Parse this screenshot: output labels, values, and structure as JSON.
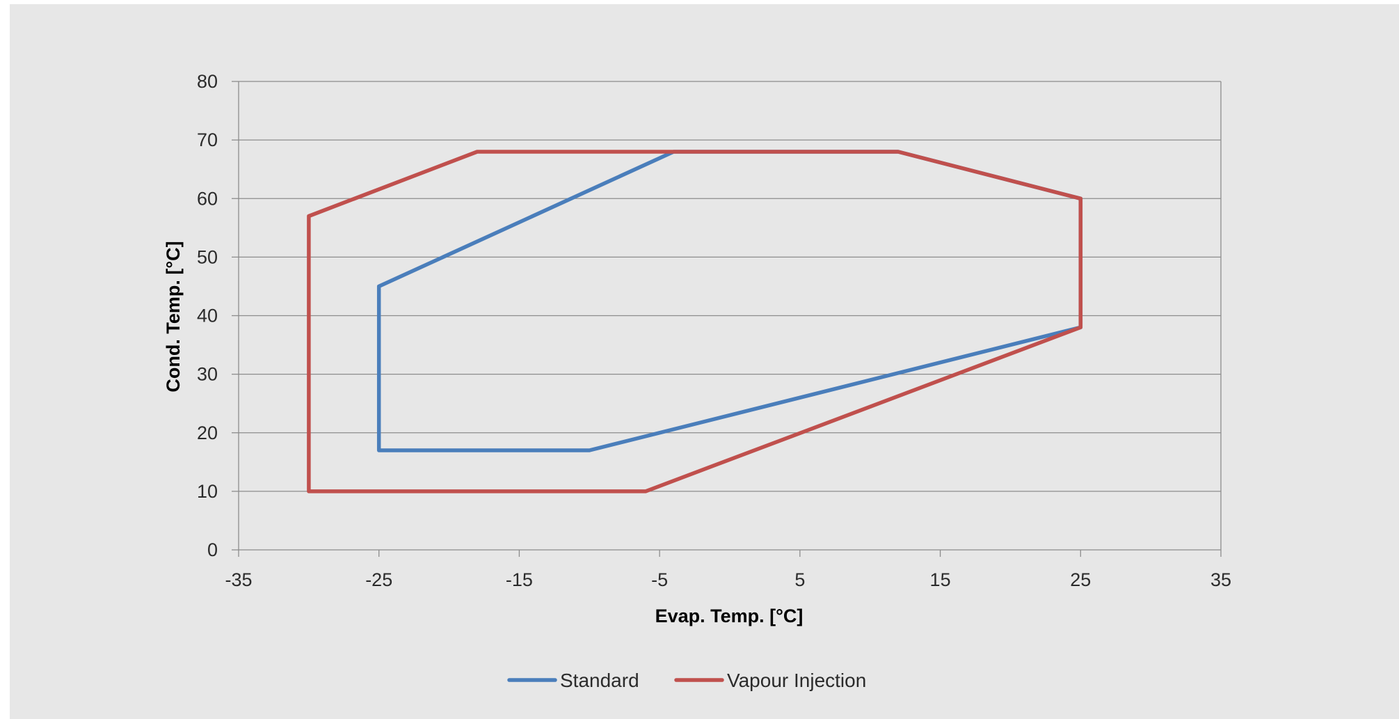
{
  "chart_data": {
    "type": "line",
    "title": "",
    "xlabel": "Evap. Temp. [°C]",
    "ylabel": "Cond. Temp. [°C]",
    "xlim": [
      -35,
      35
    ],
    "ylim": [
      0,
      80
    ],
    "xticks": [
      -35,
      -25,
      -15,
      -5,
      5,
      15,
      25,
      35
    ],
    "yticks": [
      0,
      10,
      20,
      30,
      40,
      50,
      60,
      70,
      80
    ],
    "grid": "horizontal",
    "legend_position": "bottom",
    "series": [
      {
        "name": "Standard",
        "color": "#4a7ebb",
        "points": [
          {
            "x": -25,
            "y": 17
          },
          {
            "x": -25,
            "y": 45
          },
          {
            "x": -4,
            "y": 68
          },
          {
            "x": 12,
            "y": 68
          },
          {
            "x": 25,
            "y": 60
          },
          {
            "x": 25,
            "y": 38
          },
          {
            "x": -10,
            "y": 17
          },
          {
            "x": -25,
            "y": 17
          }
        ]
      },
      {
        "name": "Vapour Injection",
        "color": "#c0504d",
        "points": [
          {
            "x": -30,
            "y": 10
          },
          {
            "x": -30,
            "y": 57
          },
          {
            "x": -18,
            "y": 68
          },
          {
            "x": 12,
            "y": 68
          },
          {
            "x": 25,
            "y": 60
          },
          {
            "x": 25,
            "y": 38
          },
          {
            "x": -6,
            "y": 10
          },
          {
            "x": -30,
            "y": 10
          }
        ]
      }
    ]
  }
}
